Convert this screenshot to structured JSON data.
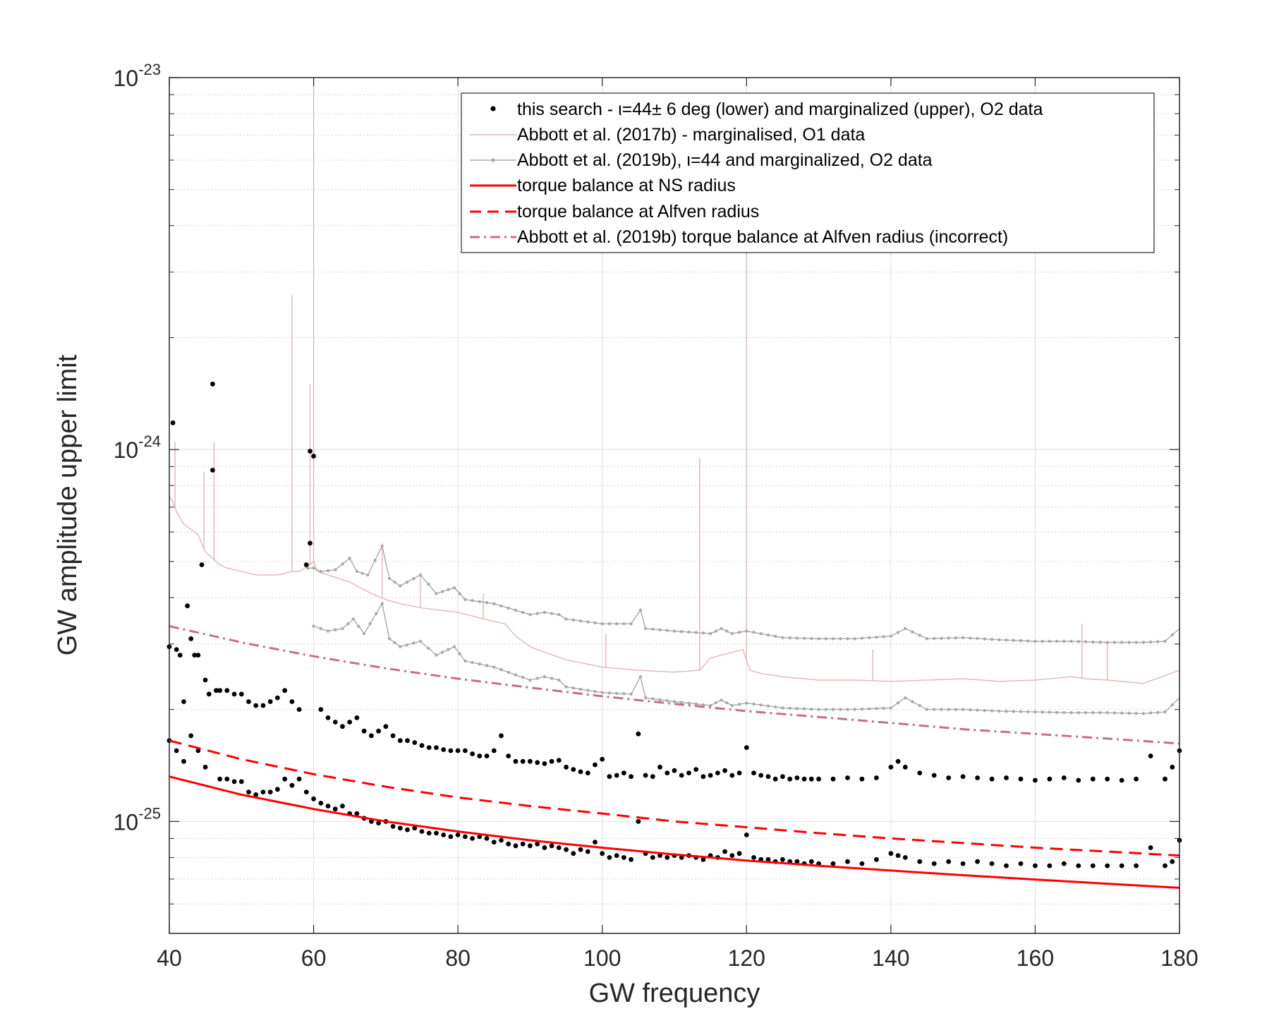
{
  "chart_data": {
    "type": "scatter",
    "title": "",
    "xlabel": "GW frequency",
    "ylabel": "GW amplitude upper limit",
    "xlim": [
      40,
      180
    ],
    "ylim": [
      5e-26,
      1e-23
    ],
    "yscale": "log",
    "grid": true,
    "legend_placement": "top-right",
    "x_ticks": [
      "40",
      "60",
      "80",
      "100",
      "120",
      "140",
      "160",
      "180"
    ],
    "y_ticks": [
      {
        "value": 1e-25,
        "base": "10",
        "exp": "-25"
      },
      {
        "value": 1e-24,
        "base": "10",
        "exp": "-24"
      },
      {
        "value": 1e-23,
        "base": "10",
        "exp": "-23"
      }
    ],
    "legend": [
      "this search - ι=44± 6 deg (lower) and marginalized (upper), O2 data",
      "Abbott et al. (2017b) - marginalised, O1 data",
      "Abbott et al. (2019b), ι=44 and marginalized, O2 data",
      "torque balance at NS radius",
      "torque balance at Alfven radius",
      "Abbott et al. (2019b) torque balance at Alfven radius (incorrect)"
    ],
    "colors": {
      "this_search": "#000000",
      "o1_2017b": "#e3b5b5",
      "o2_2019b": "#a9a9a9",
      "torque_ns": "#ff0000",
      "torque_alfven": "#ff0000",
      "torque_alfven_incorrect": "#c96b91"
    },
    "series": [
      {
        "name": "torque balance at NS radius",
        "style": "solid",
        "x": [
          40,
          50,
          60,
          70,
          80,
          90,
          100,
          110,
          120,
          130,
          140,
          150,
          160,
          170,
          180
        ],
        "y": [
          1.32e-25,
          1.18e-25,
          1.08e-25,
          1e-25,
          9.4e-26,
          8.9e-26,
          8.5e-26,
          8.15e-26,
          7.85e-26,
          7.6e-26,
          7.38e-26,
          7.17e-26,
          6.98e-26,
          6.8e-26,
          6.63e-26
        ]
      },
      {
        "name": "torque balance at Alfven radius",
        "style": "dashed",
        "x": [
          40,
          50,
          60,
          70,
          80,
          90,
          100,
          110,
          120,
          130,
          140,
          150,
          160,
          170,
          180
        ],
        "y": [
          1.65e-25,
          1.47e-25,
          1.34e-25,
          1.24e-25,
          1.16e-25,
          1.1e-25,
          1.05e-25,
          1e-25,
          9.65e-26,
          9.3e-26,
          9e-26,
          8.75e-26,
          8.5e-26,
          8.3e-26,
          8.1e-26
        ]
      },
      {
        "name": "Abbott et al. (2019b) torque balance at Alfven radius (incorrect)",
        "style": "dashdot",
        "x": [
          40,
          50,
          60,
          70,
          80,
          90,
          100,
          110,
          120,
          130,
          140,
          150,
          160,
          170,
          180
        ],
        "y": [
          3.35e-25,
          3.03e-25,
          2.78e-25,
          2.58e-25,
          2.42e-25,
          2.29e-25,
          2.17e-25,
          2.07e-25,
          1.98e-25,
          1.91e-25,
          1.84e-25,
          1.77e-25,
          1.72e-25,
          1.67e-25,
          1.62e-25
        ]
      },
      {
        "name": "Abbott et al. (2017b) - marginalised, O1 data",
        "style": "thin-line",
        "x": [
          40,
          40.5,
          41,
          42,
          43,
          44,
          45,
          46,
          47,
          48,
          50,
          52,
          55,
          57,
          58,
          59.5,
          60,
          60.5,
          62,
          65,
          68,
          70,
          72,
          75,
          80,
          85,
          86.5,
          88,
          90,
          92,
          95,
          100,
          105,
          110,
          113.5,
          115,
          118,
          119.5,
          120,
          120.5,
          122,
          125,
          130,
          135,
          140,
          145,
          150,
          155,
          160,
          165,
          167,
          170,
          175,
          180
        ],
        "y": [
          7.5e-25,
          7.2e-25,
          6.8e-25,
          6.3e-25,
          6.1e-25,
          5.9e-25,
          5.3e-25,
          5.1e-25,
          4.9e-25,
          4.8e-25,
          4.7e-25,
          4.6e-25,
          4.6e-25,
          4.7e-25,
          4.7e-25,
          4.9e-25,
          5e-25,
          4.7e-25,
          4.6e-25,
          4.4e-25,
          4.1e-25,
          3.95e-25,
          3.85e-25,
          3.75e-25,
          3.65e-25,
          3.45e-25,
          3.4e-25,
          3.15e-25,
          2.95e-25,
          2.85e-25,
          2.72e-25,
          2.6e-25,
          2.55e-25,
          2.52e-25,
          2.55e-25,
          2.75e-25,
          2.85e-25,
          2.9e-25,
          2.7e-25,
          2.55e-25,
          2.5e-25,
          2.45e-25,
          2.4e-25,
          2.4e-25,
          2.38e-25,
          2.4e-25,
          2.42e-25,
          2.38e-25,
          2.4e-25,
          2.45e-25,
          2.42e-25,
          2.4e-25,
          2.35e-25,
          2.55e-25
        ],
        "spikes": [
          {
            "x": 40.8,
            "y": 1.05e-24
          },
          {
            "x": 44.8,
            "y": 8.7e-25
          },
          {
            "x": 46.2,
            "y": 1.05e-24
          },
          {
            "x": 57.0,
            "y": 2.6e-24
          },
          {
            "x": 59.5,
            "y": 1.5e-24
          },
          {
            "x": 60.0,
            "y": 1e-23
          },
          {
            "x": 69.5,
            "y": 5.6e-25
          },
          {
            "x": 74.8,
            "y": 4.6e-25
          },
          {
            "x": 83.5,
            "y": 4.1e-25
          },
          {
            "x": 100.5,
            "y": 3.2e-25
          },
          {
            "x": 113.5,
            "y": 9.5e-25
          },
          {
            "x": 120.0,
            "y": 3.7e-24
          },
          {
            "x": 137.5,
            "y": 2.9e-25
          },
          {
            "x": 166.5,
            "y": 3.4e-25
          },
          {
            "x": 170.0,
            "y": 3e-25
          }
        ]
      },
      {
        "name": "Abbott et al. (2019b), ι=44 and marginalized, O2 data (marginalized)",
        "style": "thin-line-dots",
        "x": [
          59.2,
          60,
          61,
          63,
          65,
          66,
          67.5,
          69.5,
          70.5,
          72,
          74.8,
          77,
          79.5,
          81,
          85,
          90,
          92,
          94,
          95,
          100,
          104,
          105.3,
          106,
          110,
          115,
          116.5,
          118,
          120,
          125,
          130,
          135,
          140,
          142,
          145,
          150,
          155,
          160,
          165,
          170,
          175,
          178,
          180
        ],
        "y": [
          4.8e-25,
          4.8e-25,
          4.7e-25,
          4.75e-25,
          5.1e-25,
          4.7e-25,
          4.6e-25,
          5.5e-25,
          4.5e-25,
          4.3e-25,
          4.6e-25,
          4.1e-25,
          4.25e-25,
          3.95e-25,
          3.85e-25,
          3.6e-25,
          3.65e-25,
          3.6e-25,
          3.5e-25,
          3.4e-25,
          3.4e-25,
          3.7e-25,
          3.3e-25,
          3.25e-25,
          3.2e-25,
          3.3e-25,
          3.2e-25,
          3.25e-25,
          3.12e-25,
          3.1e-25,
          3.1e-25,
          3.15e-25,
          3.3e-25,
          3.1e-25,
          3.12e-25,
          3.08e-25,
          3.05e-25,
          3.05e-25,
          3.03e-25,
          3.03e-25,
          3.05e-25,
          3.3e-25
        ]
      },
      {
        "name": "Abbott et al. (2019b), ι=44 and marginalized, O2 data (ι=44)",
        "style": "thin-line-dots",
        "x": [
          60,
          62,
          64,
          65.5,
          67,
          69.5,
          70.5,
          72,
          74.8,
          77,
          79.5,
          81,
          85,
          90,
          92,
          94,
          95,
          100,
          104,
          105.3,
          106,
          110,
          115,
          116.5,
          118,
          120,
          125,
          130,
          135,
          140,
          142,
          145,
          150,
          155,
          160,
          165,
          170,
          175,
          178,
          180
        ],
        "y": [
          3.35e-25,
          3.25e-25,
          3.3e-25,
          3.5e-25,
          3.2e-25,
          3.85e-25,
          3.1e-25,
          2.95e-25,
          3.05e-25,
          2.8e-25,
          2.95e-25,
          2.7e-25,
          2.6e-25,
          2.4e-25,
          2.45e-25,
          2.4e-25,
          2.3e-25,
          2.22e-25,
          2.2e-25,
          2.45e-25,
          2.15e-25,
          2.1e-25,
          2.05e-25,
          2.12e-25,
          2.05e-25,
          2.08e-25,
          2.02e-25,
          2e-25,
          2e-25,
          2.02e-25,
          2.15e-25,
          2e-25,
          2e-25,
          1.98e-25,
          1.97e-25,
          1.96e-25,
          1.96e-25,
          1.95e-25,
          1.97e-25,
          2.15e-25
        ]
      },
      {
        "name": "this search - marginalized (upper)",
        "style": "dots",
        "x": [
          40,
          40.5,
          41,
          41.5,
          42,
          42.5,
          43,
          43.5,
          44,
          44.5,
          45,
          45.5,
          46,
          46.5,
          47,
          48,
          49,
          50,
          51,
          52,
          53,
          54,
          55,
          56,
          57,
          58,
          59,
          59.5,
          60,
          61,
          62,
          63,
          64,
          65,
          66,
          67,
          68,
          69,
          70,
          71,
          72,
          73,
          74,
          75,
          76,
          77,
          78,
          79,
          80,
          81,
          82,
          83,
          84,
          85,
          86,
          87,
          88,
          89,
          90,
          91,
          92,
          93,
          94,
          95,
          96,
          97,
          98,
          99,
          100,
          101,
          102,
          103,
          104,
          105,
          106,
          107,
          108,
          109,
          110,
          111,
          112,
          113,
          114,
          115,
          116,
          117,
          118,
          119,
          120,
          121,
          122,
          123,
          124,
          125,
          126,
          127,
          128,
          129,
          130,
          132,
          134,
          136,
          138,
          140,
          141,
          142,
          144,
          146,
          148,
          150,
          152,
          154,
          156,
          158,
          160,
          162,
          164,
          166,
          168,
          170,
          172,
          174,
          176,
          178,
          179,
          180
        ],
        "y": [
          2.95e-25,
          1.18e-24,
          2.9e-25,
          2.8e-25,
          2.1e-25,
          3.8e-25,
          3.1e-25,
          2.8e-25,
          2.8e-25,
          4.9e-25,
          2.4e-25,
          2.2e-25,
          1.5e-24,
          2.25e-25,
          2.25e-25,
          2.25e-25,
          2.2e-25,
          2.2e-25,
          2.1e-25,
          2.05e-25,
          2.05e-25,
          2.1e-25,
          2.15e-25,
          2.25e-25,
          2.1e-25,
          2e-25,
          4.9e-25,
          9.9e-25,
          9.6e-25,
          2e-25,
          1.9e-25,
          1.85e-25,
          1.8e-25,
          1.85e-25,
          1.9e-25,
          1.75e-25,
          1.7e-25,
          1.75e-25,
          1.8e-25,
          1.7e-25,
          1.65e-25,
          1.65e-25,
          1.63e-25,
          1.6e-25,
          1.58e-25,
          1.58e-25,
          1.56e-25,
          1.55e-25,
          1.55e-25,
          1.55e-25,
          1.52e-25,
          1.5e-25,
          1.5e-25,
          1.55e-25,
          1.7e-25,
          1.5e-25,
          1.45e-25,
          1.45e-25,
          1.45e-25,
          1.44e-25,
          1.43e-25,
          1.45e-25,
          1.46e-25,
          1.4e-25,
          1.38e-25,
          1.36e-25,
          1.35e-25,
          1.42e-25,
          1.47e-25,
          1.32e-25,
          1.33e-25,
          1.35e-25,
          1.32e-25,
          1.72e-25,
          1.33e-25,
          1.32e-25,
          1.4e-25,
          1.35e-25,
          1.37e-25,
          1.33e-25,
          1.35e-25,
          1.38e-25,
          1.32e-25,
          1.33e-25,
          1.35e-25,
          1.37e-25,
          1.33e-25,
          1.35e-25,
          1.58e-25,
          1.35e-25,
          1.33e-25,
          1.32e-25,
          1.3e-25,
          1.32e-25,
          1.3e-25,
          1.31e-25,
          1.3e-25,
          1.3e-25,
          1.3e-25,
          1.3e-25,
          1.31e-25,
          1.3e-25,
          1.31e-25,
          1.4e-25,
          1.45e-25,
          1.4e-25,
          1.35e-25,
          1.33e-25,
          1.31e-25,
          1.32e-25,
          1.31e-25,
          1.3e-25,
          1.31e-25,
          1.3e-25,
          1.29e-25,
          1.3e-25,
          1.31e-25,
          1.29e-25,
          1.3e-25,
          1.3e-25,
          1.29e-25,
          1.3e-25,
          1.5e-25,
          1.3e-25,
          1.4e-25,
          1.55e-25
        ]
      },
      {
        "name": "this search - ι=44± 6 deg (lower)",
        "style": "dots",
        "x": [
          40,
          41,
          42,
          43,
          44,
          45,
          46,
          47,
          48,
          49,
          50,
          51,
          52,
          53,
          54,
          55,
          56,
          57,
          58,
          59,
          59.5,
          60,
          61,
          62,
          63,
          64,
          65,
          66,
          67,
          68,
          69,
          70,
          71,
          72,
          73,
          74,
          75,
          76,
          77,
          78,
          79,
          80,
          81,
          82,
          83,
          84,
          85,
          86,
          87,
          88,
          89,
          90,
          91,
          92,
          93,
          94,
          95,
          96,
          97,
          98,
          99,
          100,
          101,
          102,
          103,
          104,
          105,
          106,
          107,
          108,
          109,
          110,
          111,
          112,
          113,
          114,
          115,
          116,
          117,
          118,
          119,
          120,
          121,
          122,
          123,
          124,
          125,
          126,
          127,
          128,
          129,
          130,
          132,
          134,
          136,
          138,
          140,
          141,
          142,
          144,
          146,
          148,
          150,
          152,
          154,
          156,
          158,
          160,
          162,
          164,
          166,
          168,
          170,
          172,
          174,
          176,
          178,
          179,
          180
        ],
        "y": [
          1.65e-25,
          1.55e-25,
          1.45e-25,
          1.7e-25,
          1.55e-25,
          1.4e-25,
          8.8e-25,
          1.3e-25,
          1.3e-25,
          1.28e-25,
          1.28e-25,
          1.2e-25,
          1.18e-25,
          1.2e-25,
          1.2e-25,
          1.22e-25,
          1.3e-25,
          1.25e-25,
          1.3e-25,
          1.2e-25,
          5.6e-25,
          1.15e-25,
          1.12e-25,
          1.1e-25,
          1.08e-25,
          1.1e-25,
          1.05e-25,
          1.05e-25,
          1.02e-25,
          1e-25,
          9.9e-26,
          1e-25,
          9.7e-26,
          9.6e-26,
          9.5e-26,
          9.6e-26,
          9.4e-26,
          9.3e-26,
          9.3e-26,
          9.2e-26,
          9.1e-26,
          9.2e-26,
          9.1e-26,
          9e-26,
          9.1e-26,
          9e-26,
          8.8e-26,
          8.9e-26,
          8.7e-26,
          8.6e-26,
          8.7e-26,
          8.6e-26,
          8.7e-26,
          8.5e-26,
          8.6e-26,
          8.5e-26,
          8.4e-26,
          8.2e-26,
          8.4e-26,
          8.3e-26,
          8.8e-26,
          8.2e-26,
          8e-26,
          8.1e-26,
          8e-26,
          7.9e-26,
          1e-25,
          8.2e-26,
          8e-26,
          8.1e-26,
          8e-26,
          8.1e-26,
          8e-26,
          8.1e-26,
          8e-26,
          7.9e-26,
          8.1e-26,
          8e-26,
          8.3e-26,
          8.1e-26,
          8.2e-26,
          9.2e-26,
          8e-26,
          7.9e-26,
          7.9e-26,
          7.8e-26,
          7.9e-26,
          7.8e-26,
          7.8e-26,
          7.7e-26,
          7.8e-26,
          7.7e-26,
          7.7e-26,
          7.8e-26,
          7.7e-26,
          7.9e-26,
          8.2e-26,
          8.1e-26,
          8e-26,
          7.8e-26,
          7.7e-26,
          7.8e-26,
          7.7e-26,
          7.8e-26,
          7.7e-26,
          7.6e-26,
          7.7e-26,
          7.6e-26,
          7.6e-26,
          7.7e-26,
          7.6e-26,
          7.6e-26,
          7.6e-26,
          7.6e-26,
          7.6e-26,
          8.5e-26,
          7.6e-26,
          7.8e-26,
          8.9e-26
        ]
      }
    ]
  }
}
